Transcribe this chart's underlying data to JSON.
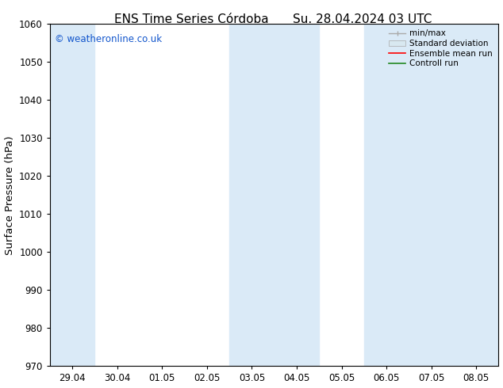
{
  "title_left": "ENS Time Series Córdoba",
  "title_right": "Su. 28.04.2024 03 UTC",
  "ylabel": "Surface Pressure (hPa)",
  "ylim": [
    970,
    1060
  ],
  "yticks": [
    970,
    980,
    990,
    1000,
    1010,
    1020,
    1030,
    1040,
    1050,
    1060
  ],
  "xtick_labels": [
    "29.04",
    "30.04",
    "01.05",
    "02.05",
    "03.05",
    "04.05",
    "05.05",
    "06.05",
    "07.05",
    "08.05"
  ],
  "num_xticks": 10,
  "shaded_color": "#daeaf7",
  "bg_color": "#ffffff",
  "plot_bg_color": "#ffffff",
  "watermark": "© weatheronline.co.uk",
  "watermark_color": "#1155cc",
  "legend_items": [
    {
      "label": "min/max",
      "color": "#aaaaaa"
    },
    {
      "label": "Standard deviation",
      "color": "#cccccc"
    },
    {
      "label": "Ensemble mean run",
      "color": "#ff0000"
    },
    {
      "label": "Controll run",
      "color": "#007700"
    }
  ],
  "font_color": "#000000",
  "tick_font_size": 8.5,
  "label_font_size": 9.5,
  "title_font_size": 11,
  "shaded_ranges": [
    [
      -0.5,
      0.5
    ],
    [
      3.5,
      5.5
    ],
    [
      6.5,
      9.55
    ]
  ]
}
